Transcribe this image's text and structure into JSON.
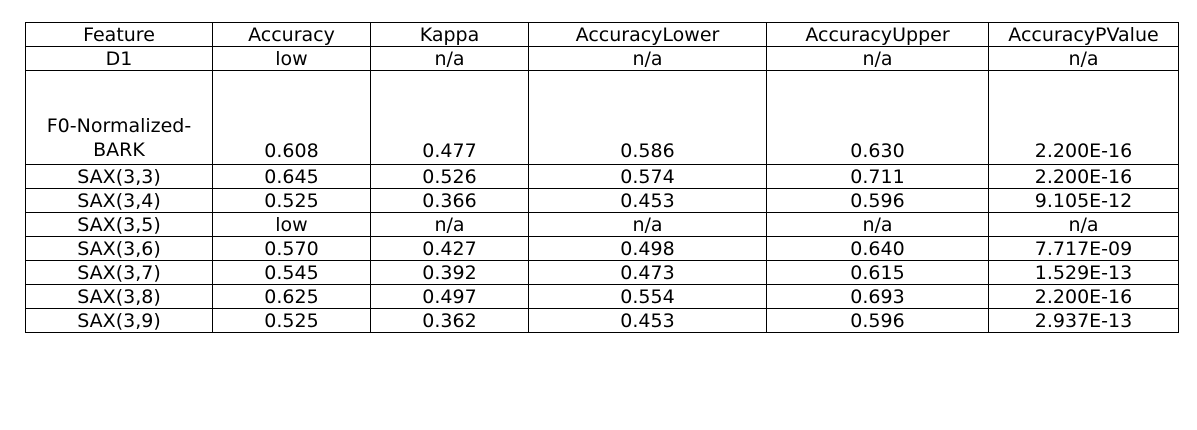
{
  "table": {
    "headers": [
      "Feature",
      "Accuracy",
      "Kappa",
      "AccuracyLower",
      "AccuracyUpper",
      "AccuracyPValue"
    ],
    "rows": [
      {
        "feature": "D1",
        "accuracy": "low",
        "kappa": "n/a",
        "lower": "n/a",
        "upper": "n/a",
        "pvalue": "n/a"
      },
      {
        "feature_line1": "F0-Normalized-",
        "feature_line2": "BARK",
        "accuracy": "0.608",
        "kappa": "0.477",
        "lower": "0.586",
        "upper": "0.630",
        "pvalue": "2.200E-16"
      },
      {
        "feature": "SAX(3,3)",
        "accuracy": "0.645",
        "kappa": "0.526",
        "lower": "0.574",
        "upper": "0.711",
        "pvalue": "2.200E-16"
      },
      {
        "feature": "SAX(3,4)",
        "accuracy": "0.525",
        "kappa": "0.366",
        "lower": "0.453",
        "upper": "0.596",
        "pvalue": "9.105E-12"
      },
      {
        "feature": "SAX(3,5)",
        "accuracy": "low",
        "kappa": "n/a",
        "lower": "n/a",
        "upper": "n/a",
        "pvalue": "n/a"
      },
      {
        "feature": "SAX(3,6)",
        "accuracy": "0.570",
        "kappa": "0.427",
        "lower": "0.498",
        "upper": "0.640",
        "pvalue": "7.717E-09"
      },
      {
        "feature": "SAX(3,7)",
        "accuracy": "0.545",
        "kappa": "0.392",
        "lower": "0.473",
        "upper": "0.615",
        "pvalue": "1.529E-13"
      },
      {
        "feature": "SAX(3,8)",
        "accuracy": "0.625",
        "kappa": "0.497",
        "lower": "0.554",
        "upper": "0.693",
        "pvalue": "2.200E-16"
      },
      {
        "feature": "SAX(3,9)",
        "accuracy": "0.525",
        "kappa": "0.362",
        "lower": "0.453",
        "upper": "0.596",
        "pvalue": "2.937E-13"
      }
    ]
  }
}
